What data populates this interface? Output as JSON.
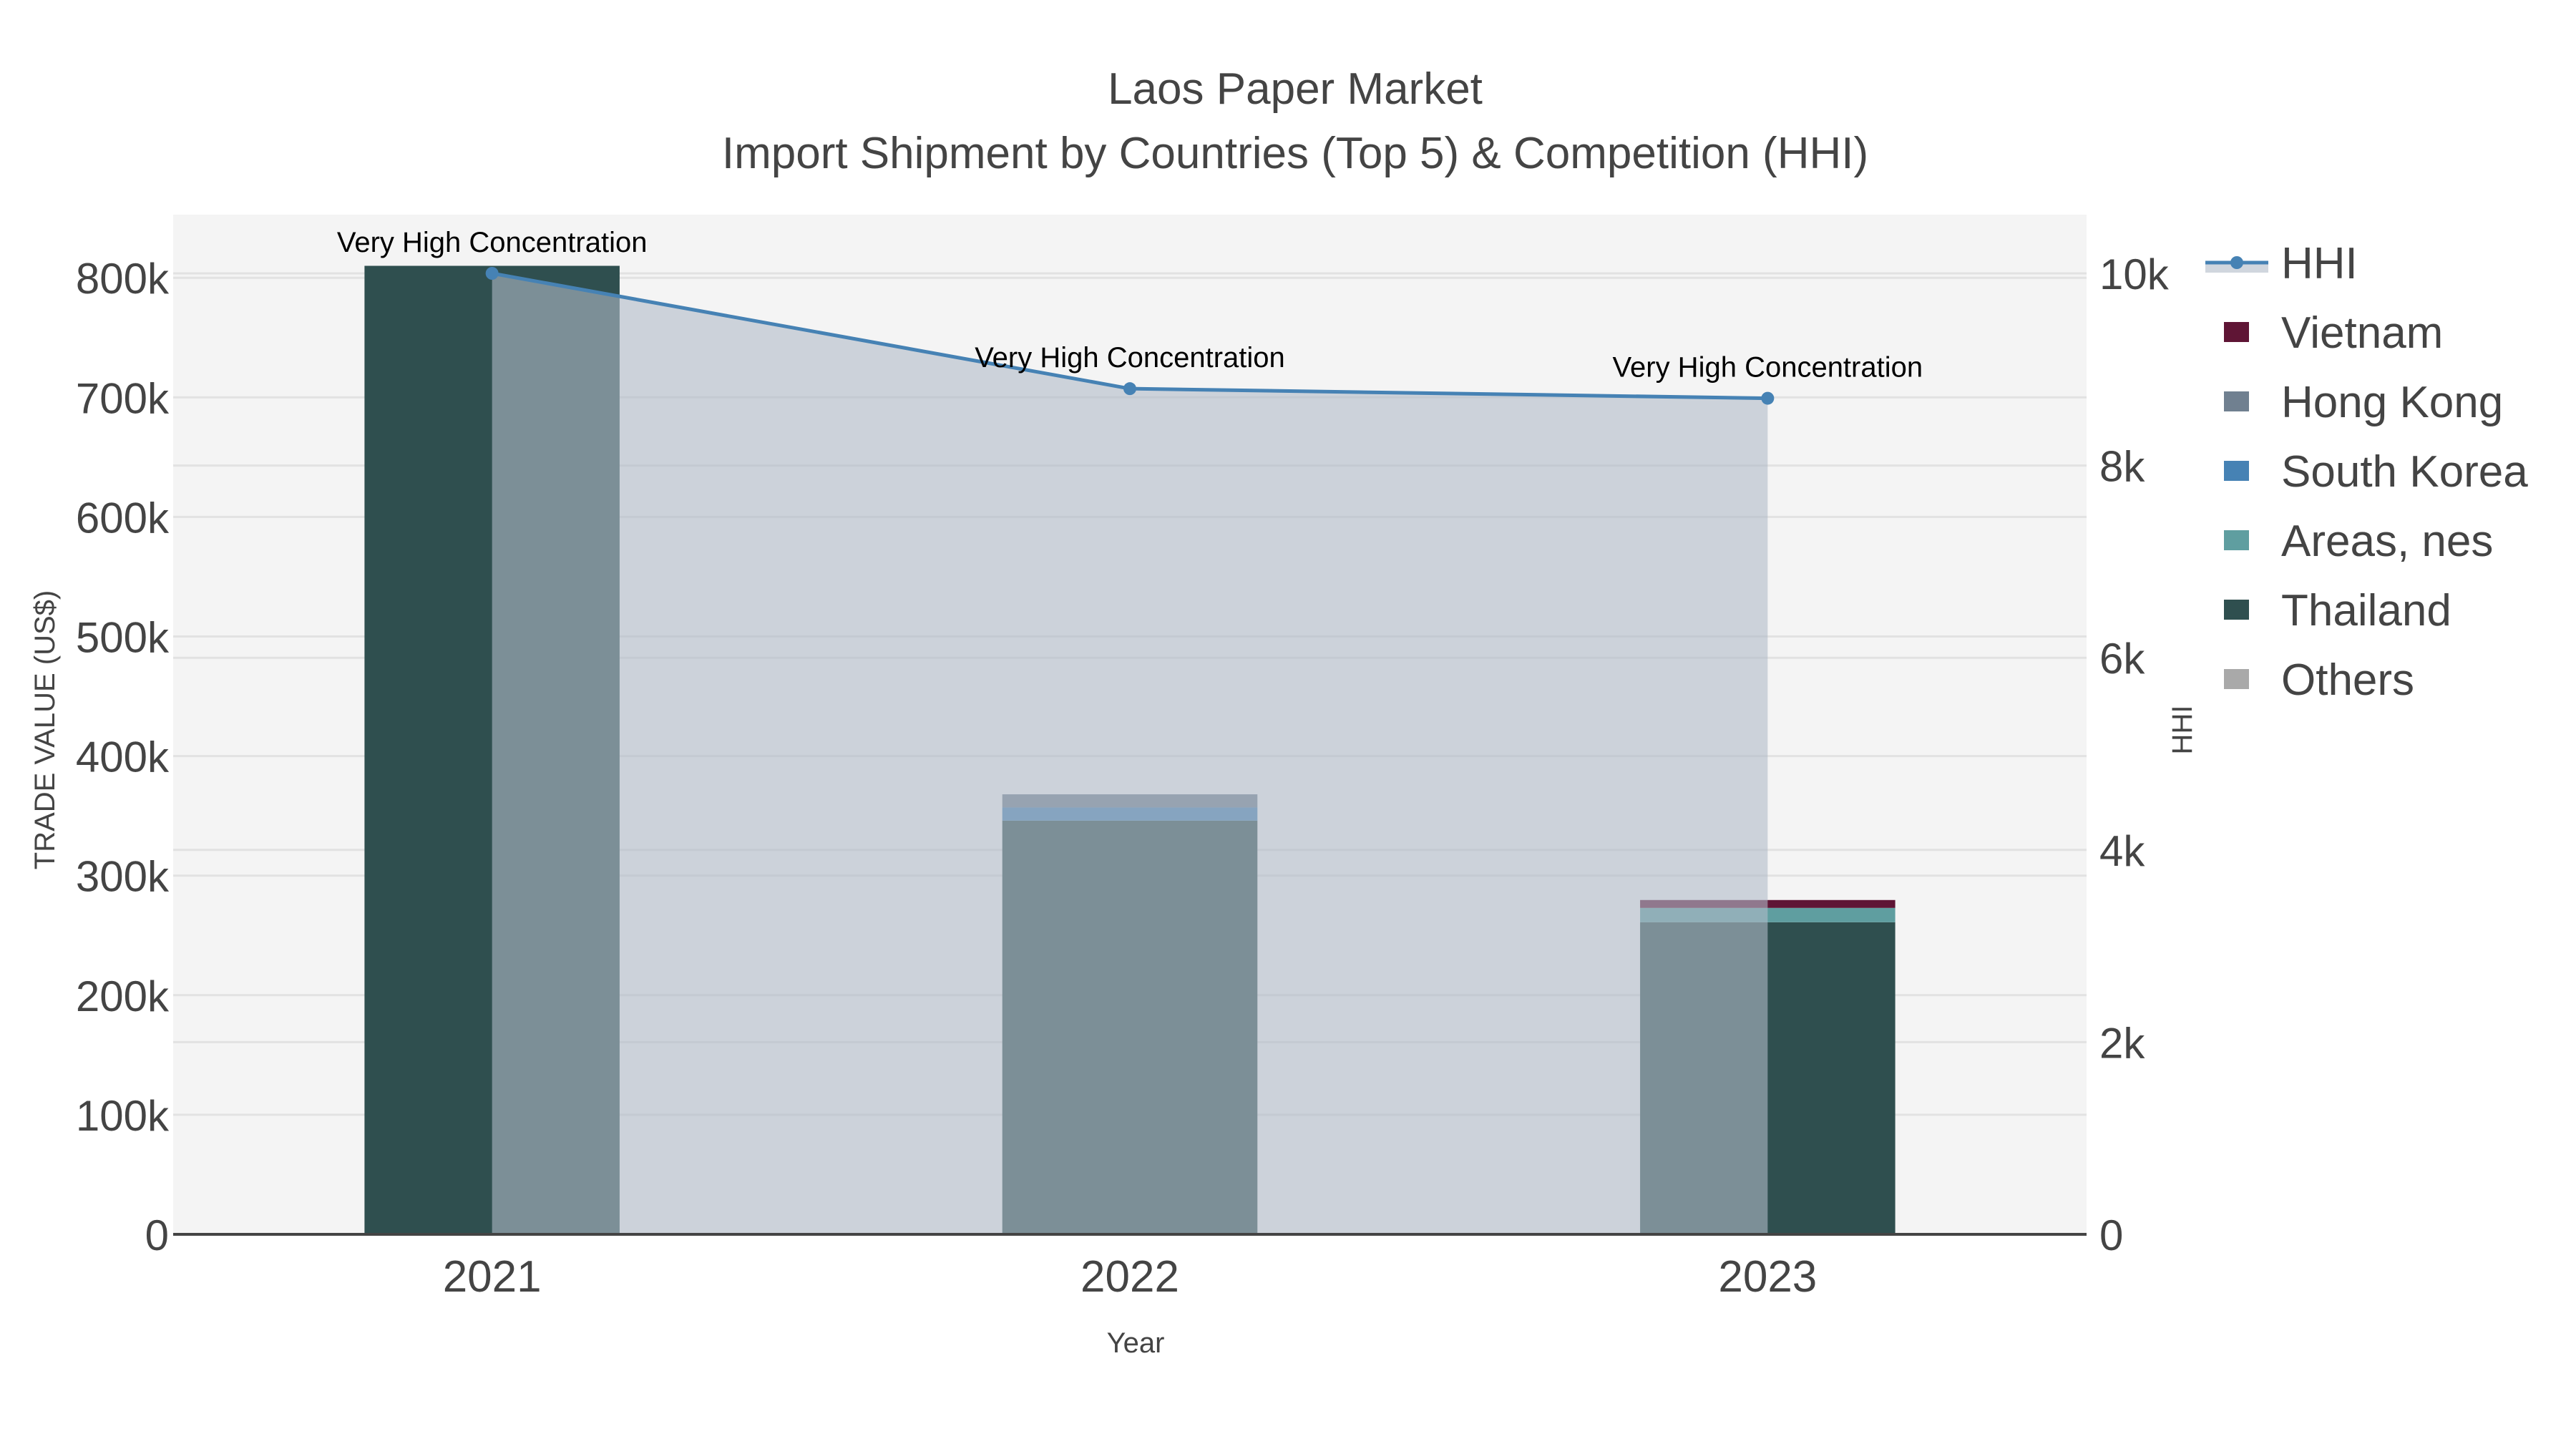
{
  "title": {
    "line1": "Laos Paper Market",
    "line2": "Import Shipment by Countries (Top 5) & Competition (HHI)"
  },
  "axes": {
    "x_title": "Year",
    "y_left_title": "TRADE VALUE (US$)",
    "y_right_title": "HHI",
    "y_left_ticks": [
      "0",
      "100k",
      "200k",
      "300k",
      "400k",
      "500k",
      "600k",
      "700k",
      "800k"
    ],
    "y_right_ticks": [
      "0",
      "2k",
      "4k",
      "6k",
      "8k",
      "10k"
    ],
    "x_ticks": [
      "2021",
      "2022",
      "2023"
    ]
  },
  "legend": [
    {
      "label": "HHI",
      "type": "line",
      "color": "#4682b4"
    },
    {
      "label": "Vietnam",
      "type": "bar",
      "color": "#5f1535"
    },
    {
      "label": "Hong Kong",
      "type": "bar",
      "color": "#708090"
    },
    {
      "label": "South Korea",
      "type": "bar",
      "color": "#4682b4"
    },
    {
      "label": "Areas, nes",
      "type": "bar",
      "color": "#5f9ea0"
    },
    {
      "label": "Thailand",
      "type": "bar",
      "color": "#2f4f4f"
    },
    {
      "label": "Others",
      "type": "bar",
      "color": "#a9a9a9"
    }
  ],
  "annotations": [
    {
      "year": "2021",
      "text": "Very High Concentration"
    },
    {
      "year": "2022",
      "text": "Very High Concentration"
    },
    {
      "year": "2023",
      "text": "Very High Concentration"
    }
  ],
  "colors": {
    "plot_bg": "#f4f4f4",
    "grid": "#e2e2e2",
    "hhi_line": "#4682b4",
    "hhi_fill": "rgba(176,186,200,0.6)",
    "axis_line": "#444444"
  },
  "chart_data": {
    "type": "bar",
    "title": "Laos Paper Market — Import Shipment by Countries (Top 5) & Competition (HHI)",
    "xlabel": "Year",
    "ylabel": "TRADE VALUE (US$)",
    "y2label": "HHI",
    "categories": [
      "2021",
      "2022",
      "2023"
    ],
    "barmode": "stack",
    "ylim": [
      0,
      850000
    ],
    "y2lim": [
      0,
      10600
    ],
    "grid": true,
    "legend_position": "right",
    "series": [
      {
        "name": "Thailand",
        "color": "#2f4f4f",
        "values": [
          810000,
          346000,
          261000
        ]
      },
      {
        "name": "Areas, nes",
        "color": "#5f9ea0",
        "values": [
          0,
          0,
          12000
        ]
      },
      {
        "name": "South Korea",
        "color": "#4682b4",
        "values": [
          0,
          11000,
          0
        ]
      },
      {
        "name": "Hong Kong",
        "color": "#708090",
        "values": [
          0,
          11000,
          0
        ]
      },
      {
        "name": "Vietnam",
        "color": "#5f1535",
        "values": [
          0,
          0,
          6600
        ]
      },
      {
        "name": "Others",
        "color": "#a9a9a9",
        "values": [
          0,
          0,
          0
        ]
      }
    ],
    "line_series": {
      "name": "HHI",
      "axis": "right",
      "type": "line+area",
      "color": "#4682b4",
      "values": [
        10000,
        8800,
        8700
      ],
      "labels": [
        "Very High Concentration",
        "Very High Concentration",
        "Very High Concentration"
      ]
    }
  }
}
